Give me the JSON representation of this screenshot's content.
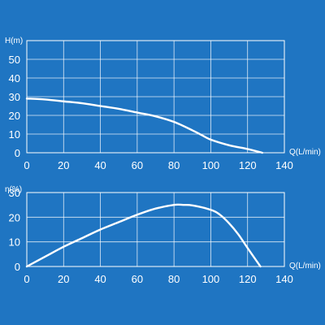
{
  "colors": {
    "background": "#1f75c2",
    "foreground": "#ffffff"
  },
  "chart_data": [
    {
      "type": "line",
      "title": "",
      "xlabel": "Q(L/min)",
      "ylabel": "H(m)",
      "xlim": [
        0,
        140
      ],
      "ylim": [
        0,
        60
      ],
      "xticks": [
        "0",
        "20",
        "40",
        "60",
        "80",
        "100",
        "120",
        "140"
      ],
      "yticks": [
        "0",
        "10",
        "20",
        "30",
        "40",
        "50"
      ],
      "grid": true,
      "series": [
        {
          "x": [
            0,
            10,
            20,
            30,
            40,
            50,
            60,
            70,
            80,
            90,
            95,
            100,
            110,
            120,
            128
          ],
          "y": [
            29,
            28.5,
            27.5,
            26.5,
            25,
            23.5,
            21.5,
            19.5,
            16.5,
            12,
            9.5,
            7,
            4,
            2,
            0
          ]
        }
      ]
    },
    {
      "type": "line",
      "title": "",
      "xlabel": "Q(L/min)",
      "ylabel": "η(%)",
      "xlim": [
        0,
        140
      ],
      "ylim": [
        0,
        30
      ],
      "xticks": [
        "0",
        "20",
        "40",
        "60",
        "80",
        "100",
        "120",
        "140"
      ],
      "yticks": [
        "0",
        "10",
        "20",
        "30"
      ],
      "grid": true,
      "series": [
        {
          "x": [
            0,
            10,
            20,
            30,
            40,
            50,
            60,
            70,
            80,
            85,
            90,
            100,
            105,
            110,
            115,
            120,
            127
          ],
          "y": [
            0,
            4,
            8,
            11.5,
            15,
            18,
            21,
            23.5,
            25,
            25,
            24.8,
            23,
            21,
            17.5,
            13,
            7.5,
            0
          ]
        }
      ]
    }
  ]
}
